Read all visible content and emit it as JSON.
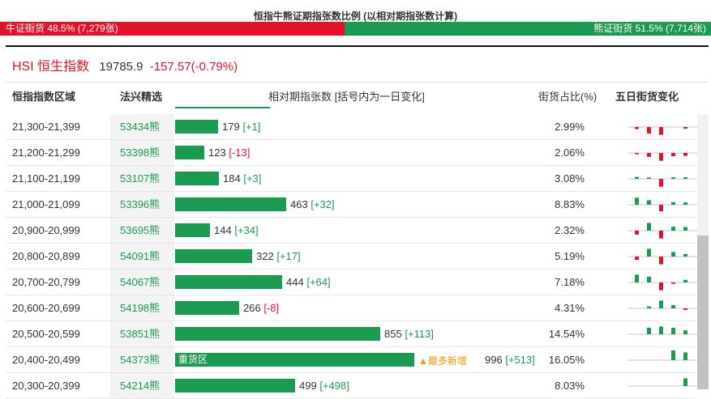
{
  "title": "恒指牛熊证期指张数比例 (以相对期指张数计算)",
  "ratio": {
    "bull_label": "牛证街货 48.5% (7,279张)",
    "bear_label": "熊证街货 51.5% (7,714张)",
    "bull_fraction": 0.485,
    "bull_color": "#e5112a",
    "bear_color": "#1b9a52"
  },
  "index": {
    "name": "HSI 恒生指数",
    "value": "19785.9",
    "change": "-157.57(-0.79%)"
  },
  "columns": {
    "range": "恒指指数区域",
    "code": "法兴精选",
    "contracts": "相对期指张数 [括号内为一日变化]",
    "share": "街货占比(%)",
    "five_day": "五日街货变化"
  },
  "rows": [
    {
      "range": "21,300-21,399",
      "code": "53434熊",
      "count": "179",
      "delta": "[+1]",
      "delta_sign": "pos",
      "share": "2.99%",
      "five_day": [
        -0.15,
        -0.5,
        -0.6,
        0,
        -0.12
      ]
    },
    {
      "range": "21,200-21,299",
      "code": "53398熊",
      "count": "123",
      "delta": "[-13]",
      "delta_sign": "neg",
      "share": "2.06%",
      "five_day": [
        -0.1,
        -0.3,
        -0.6,
        -0.25,
        -0.22
      ]
    },
    {
      "range": "21,100-21,199",
      "code": "53107熊",
      "count": "184",
      "delta": "[+3]",
      "delta_sign": "pos",
      "share": "3.08%",
      "five_day": [
        0.15,
        0.1,
        -0.6,
        0.12,
        0.12
      ]
    },
    {
      "range": "21,000-21,099",
      "code": "53396熊",
      "count": "463",
      "delta": "[+32]",
      "delta_sign": "pos",
      "share": "8.83%",
      "five_day": [
        0.55,
        0.35,
        -0.5,
        0.2,
        0.18
      ]
    },
    {
      "range": "20,900-20,999",
      "code": "53695熊",
      "count": "144",
      "delta": "[+34]",
      "delta_sign": "pos",
      "share": "2.32%",
      "five_day": [
        -0.3,
        0.6,
        -0.6,
        0.3,
        0.28
      ]
    },
    {
      "range": "20,800-20,899",
      "code": "54091熊",
      "count": "322",
      "delta": "[+17]",
      "delta_sign": "pos",
      "share": "5.19%",
      "five_day": [
        -0.25,
        0.6,
        -0.6,
        0.35,
        0.2
      ]
    },
    {
      "range": "20,700-20,799",
      "code": "54067熊",
      "count": "444",
      "delta": "[+64]",
      "delta_sign": "pos",
      "share": "7.18%",
      "five_day": [
        0.6,
        0.45,
        -0.6,
        -0.1,
        0.2
      ]
    },
    {
      "range": "20,600-20,699",
      "code": "54198熊",
      "count": "266",
      "delta": "[-8]",
      "delta_sign": "neg",
      "share": "4.31%",
      "five_day": [
        0,
        0.15,
        0.6,
        0.25,
        -0.12
      ]
    },
    {
      "range": "20,500-20,599",
      "code": "53851熊",
      "count": "855",
      "delta": "[+113]",
      "delta_sign": "pos",
      "share": "14.54%",
      "five_day": [
        0,
        0.5,
        0.6,
        0.5,
        0.3
      ]
    },
    {
      "range": "20,400-20,499",
      "code": "54373熊",
      "count": "996",
      "delta": "[+513]",
      "delta_sign": "pos",
      "share": "16.05%",
      "bar_label": "重货区",
      "flag": "▲最多新增",
      "five_day": [
        0,
        0,
        0,
        0.75,
        0.6
      ]
    },
    {
      "range": "20,300-20,399",
      "code": "54214熊",
      "count": "499",
      "delta": "[+498]",
      "delta_sign": "pos",
      "share": "8.03%",
      "five_day": [
        0,
        0,
        0,
        0,
        0.6
      ]
    }
  ]
}
